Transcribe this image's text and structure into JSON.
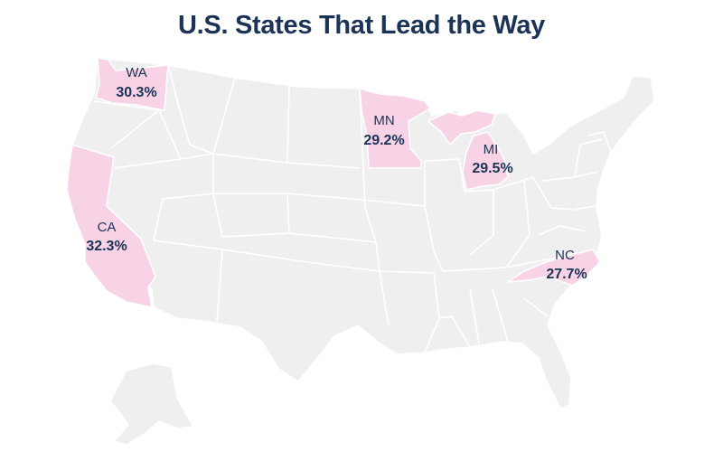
{
  "title": "U.S. States That Lead the Way",
  "highlight_color": "#f8d3e6",
  "base_color": "#efefef",
  "text_color": "#1b3356",
  "states": [
    {
      "abbr": "WA",
      "value": "30.3%"
    },
    {
      "abbr": "MN",
      "value": "29.2%"
    },
    {
      "abbr": "MI",
      "value": "29.5%"
    },
    {
      "abbr": "CA",
      "value": "32.3%"
    },
    {
      "abbr": "NC",
      "value": "27.7%"
    }
  ]
}
